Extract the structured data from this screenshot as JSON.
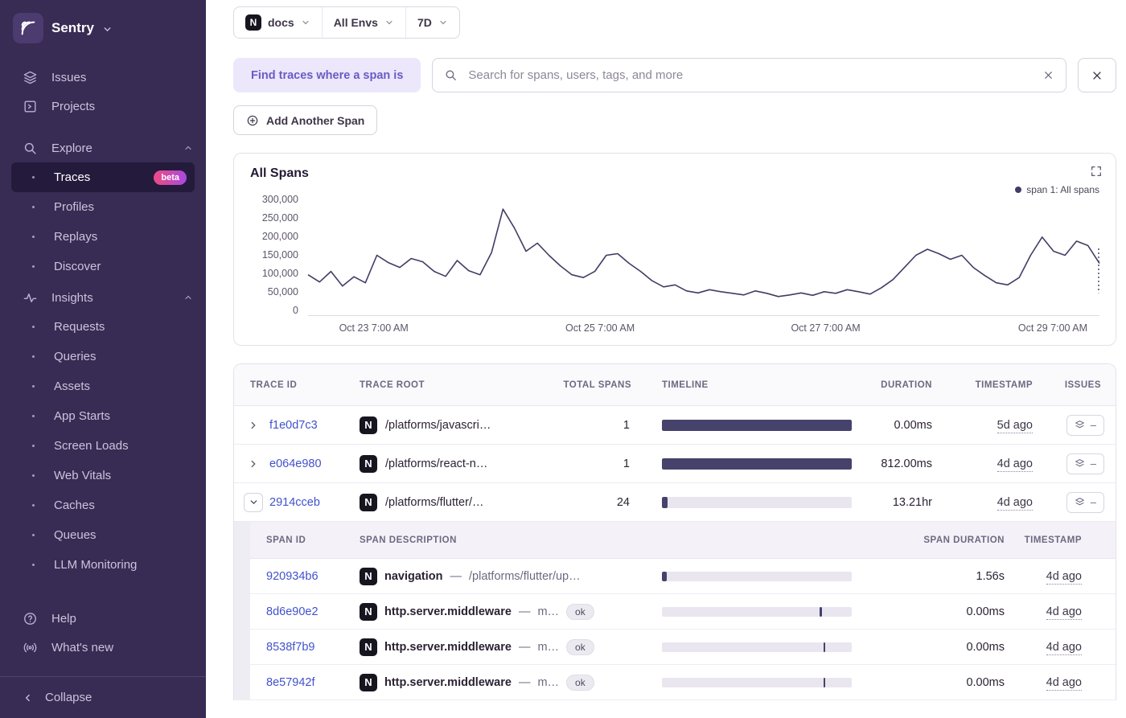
{
  "colors": {
    "accent": "#6a5bc5",
    "bar": "#45426b",
    "link": "#4152cc",
    "sidebar_bg": "#382c54",
    "beta_from": "#ee4b83",
    "beta_to": "#a84ae0"
  },
  "sidebar": {
    "brand": "Sentry",
    "issues": "Issues",
    "projects": "Projects",
    "explore": "Explore",
    "explore_items": [
      "Traces",
      "Profiles",
      "Replays",
      "Discover"
    ],
    "beta": "beta",
    "insights": "Insights",
    "insights_items": [
      "Requests",
      "Queries",
      "Assets",
      "App Starts",
      "Screen Loads",
      "Web Vitals",
      "Caches",
      "Queues",
      "LLM Monitoring"
    ],
    "help": "Help",
    "whats_new": "What's new",
    "collapse": "Collapse"
  },
  "filters": {
    "project": "docs",
    "project_icon_letter": "N",
    "env": "All Envs",
    "range": "7D"
  },
  "search": {
    "prefix": "Find traces where a span is",
    "placeholder": "Search for spans, users, tags, and more"
  },
  "actions": {
    "add_span": "Add Another Span"
  },
  "chart_data": {
    "type": "line",
    "title": "All Spans",
    "legend": [
      {
        "name": "span 1: All spans"
      }
    ],
    "ylim": [
      0,
      300000
    ],
    "yticks": [
      "300,000",
      "250,000",
      "200,000",
      "150,000",
      "100,000",
      "50,000",
      "0"
    ],
    "xticks": [
      {
        "label": "Oct 23 7:00 AM",
        "pos": 0.083
      },
      {
        "label": "Oct 25 7:00 AM",
        "pos": 0.369
      },
      {
        "label": "Oct 27 7:00 AM",
        "pos": 0.654
      },
      {
        "label": "Oct 29 7:00 AM",
        "pos": 0.941
      }
    ],
    "series": [
      {
        "name": "span 1: All spans",
        "values": [
          100000,
          82000,
          108000,
          72000,
          95000,
          80000,
          148000,
          130000,
          118000,
          140000,
          132000,
          108000,
          96000,
          135000,
          110000,
          100000,
          155000,
          262000,
          215000,
          158000,
          178000,
          148000,
          122000,
          100000,
          93000,
          108000,
          148000,
          152000,
          128000,
          108000,
          85000,
          70000,
          75000,
          60000,
          55000,
          63000,
          58000,
          54000,
          50000,
          60000,
          54000,
          46000,
          50000,
          55000,
          49000,
          58000,
          54000,
          63000,
          58000,
          52000,
          68000,
          88000,
          118000,
          148000,
          163000,
          152000,
          138000,
          148000,
          118000,
          98000,
          80000,
          75000,
          93000,
          148000,
          193000,
          158000,
          148000,
          183000,
          172000,
          128000
        ]
      }
    ],
    "line_color": "#413d66",
    "dotted_tail": true,
    "grid": false,
    "legend_position": "top-right"
  },
  "table": {
    "headers": {
      "trace_id": "Trace ID",
      "trace_root": "Trace Root",
      "total_spans": "Total Spans",
      "timeline": "Timeline",
      "duration": "Duration",
      "timestamp": "Timestamp",
      "issues": "Issues"
    },
    "issues_placeholder": "–",
    "rows": [
      {
        "id": "f1e0d7c3",
        "root": "/platforms/javascri…",
        "spans": "1",
        "duration": "0.00ms",
        "timestamp": "5d ago",
        "bar": {
          "start": 0,
          "width": 100
        }
      },
      {
        "id": "e064e980",
        "root": "/platforms/react-n…",
        "spans": "1",
        "duration": "812.00ms",
        "timestamp": "4d ago",
        "bar": {
          "start": 0,
          "width": 100
        }
      },
      {
        "id": "2914cceb",
        "root": "/platforms/flutter/…",
        "spans": "24",
        "duration": "13.21hr",
        "timestamp": "4d ago",
        "bar": {
          "start": 0,
          "width": 3
        }
      }
    ]
  },
  "subtable": {
    "headers": {
      "span_id": "Span ID",
      "span_description": "Span Description",
      "span_duration": "Span Duration",
      "timestamp": "Timestamp"
    },
    "sep": "—",
    "rows": [
      {
        "id": "920934b6",
        "op": "navigation",
        "desc": "/platforms/flutter/up…",
        "status": null,
        "duration": "1.56s",
        "timestamp": "4d ago",
        "bar": {
          "start": 0,
          "width": 2.5
        }
      },
      {
        "id": "8d6e90e2",
        "op": "http.server.middleware",
        "desc": "m…",
        "status": "ok",
        "duration": "0.00ms",
        "timestamp": "4d ago",
        "bar": {
          "start": 83,
          "width": 1.2
        }
      },
      {
        "id": "8538f7b9",
        "op": "http.server.middleware",
        "desc": "m…",
        "status": "ok",
        "duration": "0.00ms",
        "timestamp": "4d ago",
        "bar": {
          "start": 85,
          "width": 1.2
        }
      },
      {
        "id": "8e57942f",
        "op": "http.server.middleware",
        "desc": "m…",
        "status": "ok",
        "duration": "0.00ms",
        "timestamp": "4d ago",
        "bar": {
          "start": 85,
          "width": 1.2
        }
      }
    ]
  }
}
